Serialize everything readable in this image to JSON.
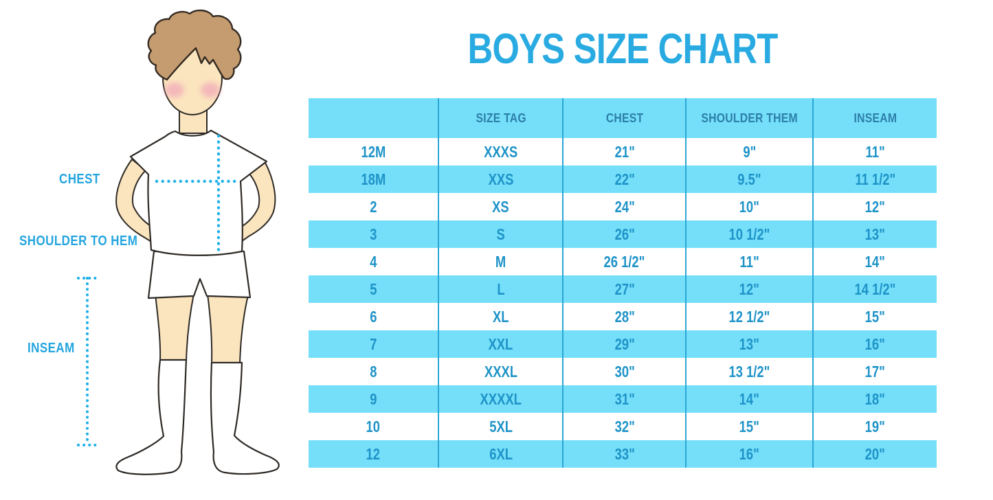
{
  "title": "BOYS SIZE CHART",
  "figure_labels": {
    "chest": "CHEST",
    "shoulder_to_hem": "SHOULDER TO HEM",
    "inseam": "INSEAM"
  },
  "colors": {
    "title_blue": "#29ABE2",
    "band_blue": "#75DFFA",
    "divider_blue": "#2BA6D6",
    "header_text_blue": "#2C7FA9",
    "cell_text_blue": "#1E93C8",
    "dotted_line_cyan": "#1FB0E8",
    "skin": "#FBE5BE",
    "hair_brown": "#C49C70",
    "blush_pink": "#F2A9B9"
  },
  "chart_data": {
    "type": "table",
    "title": "BOYS SIZE CHART",
    "columns": [
      "",
      "SIZE TAG",
      "CHEST",
      "SHOULDER THEM",
      "INSEAM"
    ],
    "rows": [
      [
        "12M",
        "XXXS",
        "21\"",
        "9\"",
        "11\""
      ],
      [
        "18M",
        "XXS",
        "22\"",
        "9.5\"",
        "11 1/2\""
      ],
      [
        "2",
        "XS",
        "24\"",
        "10\"",
        "12\""
      ],
      [
        "3",
        "S",
        "26\"",
        "10 1/2\"",
        "13\""
      ],
      [
        "4",
        "M",
        "26 1/2\"",
        "11\"",
        "14\""
      ],
      [
        "5",
        "L",
        "27\"",
        "12\"",
        "14 1/2\""
      ],
      [
        "6",
        "XL",
        "28\"",
        "12 1/2\"",
        "15\""
      ],
      [
        "7",
        "XXL",
        "29\"",
        "13\"",
        "16\""
      ],
      [
        "8",
        "XXXL",
        "30\"",
        "13 1/2\"",
        "17\""
      ],
      [
        "9",
        "XXXXL",
        "31\"",
        "14\"",
        "18\""
      ],
      [
        "10",
        "5XL",
        "32\"",
        "15\"",
        "19\""
      ],
      [
        "12",
        "6XL",
        "33\"",
        "16\"",
        "20\""
      ]
    ],
    "layout": {
      "zebra": "header and alternating rows light blue, others white",
      "units": "inches",
      "legend_position": "none",
      "grid": "vertical column dividers only"
    }
  }
}
